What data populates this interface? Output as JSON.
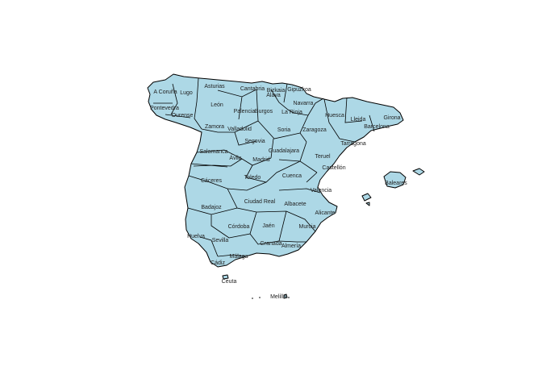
{
  "map": {
    "fill_color": "#add8e6",
    "stroke_color": "#000000",
    "label_color": "#222222",
    "provinces": [
      "A Coruña",
      "Lugo",
      "Asturias",
      "Cantabria",
      "Bizkaia",
      "Gipuzkoa",
      "Pontevedra",
      "Ourense",
      "León",
      "Palencia",
      "Burgos",
      "Álava",
      "La Rioja",
      "Navarra",
      "Huesca",
      "Girona",
      "Lleida",
      "Barcelona",
      "Zamora",
      "Valladolid",
      "Soria",
      "Zaragoza",
      "Tarragona",
      "Salamanca",
      "Segovia",
      "Guadalajara",
      "Teruel",
      "Ávila",
      "Madrid",
      "Castellón",
      "Cáceres",
      "Toledo",
      "Cuenca",
      "Valencia",
      "Baleares",
      "Ciudad Real",
      "Albacete",
      "Badajoz",
      "Alicante",
      "Córdoba",
      "Jaén",
      "Murcia",
      "Huelva",
      "Sevilla",
      "Granada",
      "Almería",
      "Cádiz",
      "Málaga",
      "Ceuta",
      "Melilla"
    ]
  }
}
